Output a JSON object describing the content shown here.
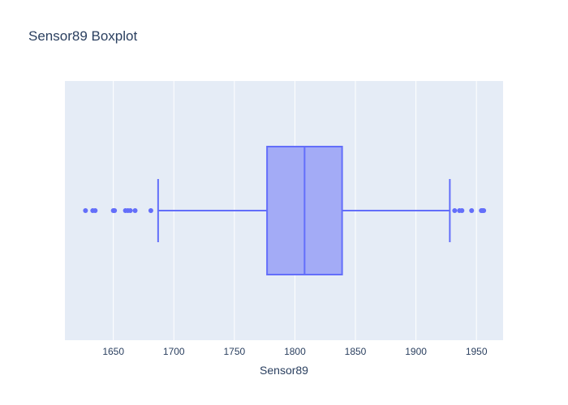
{
  "chart_data": {
    "type": "box",
    "title": "Sensor89 Boxplot",
    "xlabel": "Sensor89",
    "ylabel": "",
    "orientation": "horizontal",
    "xlim": [
      1610,
      1972
    ],
    "x_ticks": [
      1650,
      1700,
      1750,
      1800,
      1850,
      1900,
      1950
    ],
    "grid": true,
    "box": {
      "lower_fence": 1687,
      "q1": 1777,
      "median": 1808,
      "q3": 1839,
      "upper_fence": 1928
    },
    "outliers": [
      1627,
      1633,
      1635,
      1650,
      1651,
      1660,
      1662,
      1664,
      1668,
      1681,
      1932,
      1936,
      1938,
      1946,
      1954,
      1955,
      1956
    ],
    "colors": {
      "box_line": "#636efa",
      "box_fill": "#a3abf6",
      "plot_bg": "#e5ecf6",
      "grid": "#ffffff",
      "text": "#2a3f5f"
    }
  }
}
